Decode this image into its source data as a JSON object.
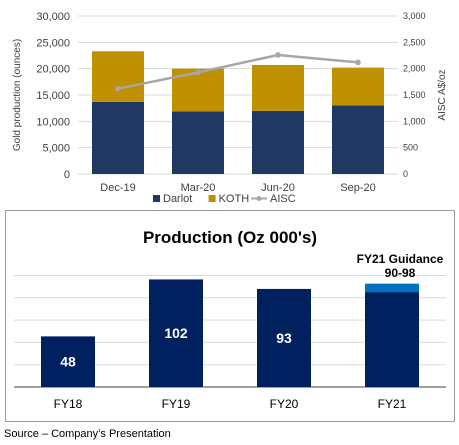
{
  "chart_data": [
    {
      "type": "bar",
      "subtype": "stacked-bar-with-line",
      "categories": [
        "Dec-19",
        "Mar-20",
        "Jun-20",
        "Sep-20"
      ],
      "series": [
        {
          "name": "Darlot",
          "values": [
            13700,
            11900,
            12000,
            13000
          ],
          "color": "#1f3864"
        },
        {
          "name": "KOTH",
          "values": [
            9600,
            8100,
            8700,
            7200
          ],
          "color": "#bf9000"
        }
      ],
      "line_series": {
        "name": "AISC",
        "values": [
          1620,
          1930,
          2260,
          2120
        ],
        "color": "#a6a6a6"
      },
      "ylabel": "Gold production (ounces)",
      "ylim": [
        0,
        30000
      ],
      "yticks": [
        "0",
        "5,000",
        "10,000",
        "15,000",
        "20,000",
        "25,000",
        "30,000"
      ],
      "y2label": "AISC A$/oz",
      "y2lim": [
        0,
        3000
      ],
      "y2ticks": [
        "0",
        "500",
        "1,000",
        "1,500",
        "2,000",
        "2,500",
        "3,000"
      ],
      "grid": true,
      "legend": "bottom"
    },
    {
      "type": "bar",
      "title": "Production (Oz 000's)",
      "categories": [
        "FY18",
        "FY19",
        "FY20",
        "FY21"
      ],
      "values": [
        48,
        102,
        93,
        90
      ],
      "data_labels": [
        "48",
        "102",
        "93",
        ""
      ],
      "guidance": {
        "category": "FY21",
        "low": 90,
        "high": 98,
        "color": "#0070c0"
      },
      "annotation": {
        "line1": "FY21 Guidance",
        "line2": "90-98"
      },
      "bar_color": "#002060",
      "ylim": [
        0,
        110
      ],
      "grid": true
    }
  ],
  "source_text": "Source – Company’s Presentation"
}
